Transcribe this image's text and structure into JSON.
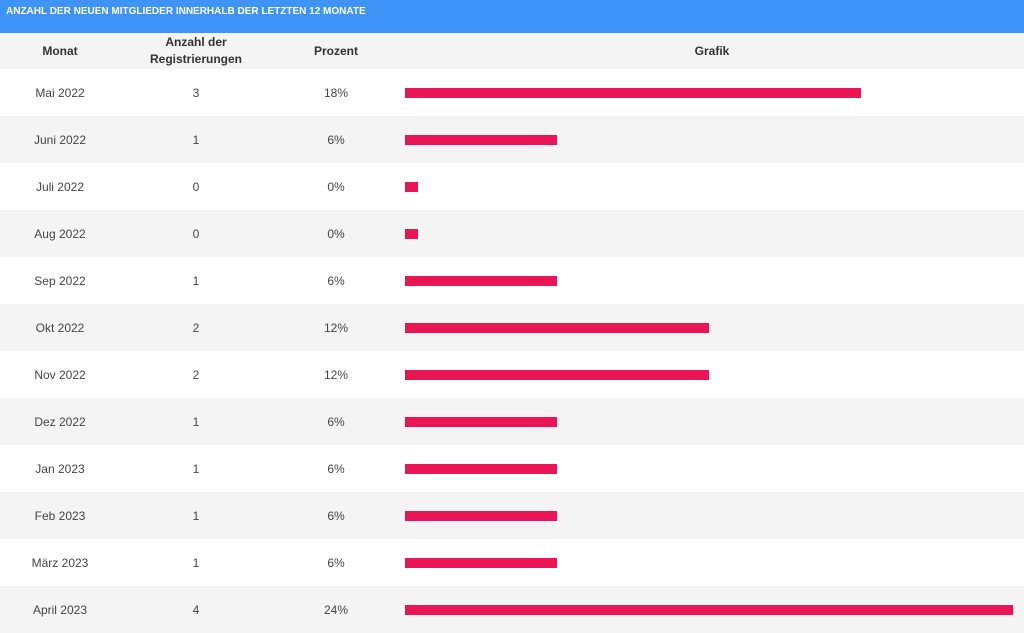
{
  "title": "ANZAHL DER NEUEN MITGLIEDER INNERHALB DER LETZTEN 12 MONATE",
  "columns": {
    "month": "Monat",
    "count_line1": "Anzahl der",
    "count_line2": "Registrierungen",
    "percent": "Prozent",
    "chart": "Grafik"
  },
  "colors": {
    "header": "#3d94f6",
    "bar": "#ea1557"
  },
  "rows": [
    {
      "month": "Mai 2022",
      "count": "3",
      "percent": "18%"
    },
    {
      "month": "Juni 2022",
      "count": "1",
      "percent": "6%"
    },
    {
      "month": "Juli 2022",
      "count": "0",
      "percent": "0%"
    },
    {
      "month": "Aug 2022",
      "count": "0",
      "percent": "0%"
    },
    {
      "month": "Sep 2022",
      "count": "1",
      "percent": "6%"
    },
    {
      "month": "Okt 2022",
      "count": "2",
      "percent": "12%"
    },
    {
      "month": "Nov 2022",
      "count": "2",
      "percent": "12%"
    },
    {
      "month": "Dez 2022",
      "count": "1",
      "percent": "6%"
    },
    {
      "month": "Jan 2023",
      "count": "1",
      "percent": "6%"
    },
    {
      "month": "Feb 2023",
      "count": "1",
      "percent": "6%"
    },
    {
      "month": "März 2023",
      "count": "1",
      "percent": "6%"
    },
    {
      "month": "April 2023",
      "count": "4",
      "percent": "24%"
    }
  ],
  "chart_data": {
    "type": "bar",
    "title": "ANZAHL DER NEUEN MITGLIEDER INNERHALB DER LETZTEN 12 MONATE",
    "categories": [
      "Mai 2022",
      "Juni 2022",
      "Juli 2022",
      "Aug 2022",
      "Sep 2022",
      "Okt 2022",
      "Nov 2022",
      "Dez 2022",
      "Jan 2023",
      "Feb 2023",
      "März 2023",
      "April 2023"
    ],
    "values": [
      3,
      1,
      0,
      0,
      1,
      2,
      2,
      1,
      1,
      1,
      1,
      4
    ],
    "percentages": [
      18,
      6,
      0,
      0,
      6,
      12,
      12,
      6,
      6,
      6,
      6,
      24
    ],
    "orientation": "horizontal",
    "xlim": [
      0,
      24
    ]
  }
}
